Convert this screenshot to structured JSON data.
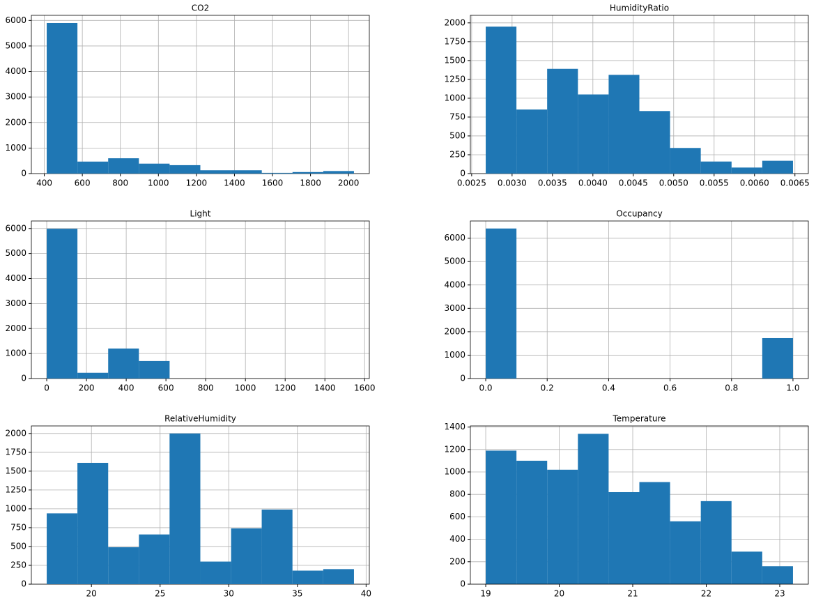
{
  "chart_data": [
    {
      "type": "histogram",
      "title": "CO2",
      "color": "#1f77b4",
      "grid": true,
      "bins": [
        412.75,
        574.3,
        735.9,
        897.5,
        1059.1,
        1220.6,
        1382.2,
        1543.8,
        1705.4,
        1867.0,
        2028.5
      ],
      "values": [
        5900,
        470,
        600,
        390,
        330,
        130,
        130,
        30,
        60,
        100
      ],
      "xlim": [
        332,
        2109.3
      ],
      "ylim": [
        0,
        6200
      ],
      "xticks": [
        400,
        600,
        800,
        1000,
        1200,
        1400,
        1600,
        1800,
        2000
      ],
      "yticks": [
        0,
        1000,
        2000,
        3000,
        4000,
        5000,
        6000
      ]
    },
    {
      "type": "histogram",
      "title": "HumidityRatio",
      "color": "#1f77b4",
      "grid": true,
      "bins": [
        0.002674,
        0.003054,
        0.003434,
        0.003815,
        0.004195,
        0.004575,
        0.004955,
        0.005335,
        0.005716,
        0.006096,
        0.006476
      ],
      "values": [
        1950,
        850,
        1390,
        1050,
        1310,
        830,
        340,
        160,
        80,
        170
      ],
      "xlim": [
        0.002484,
        0.006666
      ],
      "ylim": [
        0,
        2100
      ],
      "xticks": [
        0.0025,
        {
          "value": 0.003,
          "label": "0.0030"
        },
        0.0035,
        {
          "value": 0.004,
          "label": "0.0040"
        },
        0.0045,
        {
          "value": 0.005,
          "label": "0.0050"
        },
        0.0055,
        {
          "value": 0.006,
          "label": "0.0060"
        },
        0.0065
      ],
      "yticks": [
        0,
        250,
        500,
        750,
        1000,
        1250,
        1500,
        1750,
        2000
      ]
    },
    {
      "type": "histogram",
      "title": "Light",
      "color": "#1f77b4",
      "grid": true,
      "bins": [
        0,
        154.6,
        309.3,
        463.9,
        618.5,
        773.2,
        927.8,
        1082.4,
        1237.1,
        1391.7,
        1546.3
      ],
      "values": [
        5990,
        230,
        1200,
        700,
        0,
        0,
        0,
        0,
        0,
        0
      ],
      "xlim": [
        -77.3,
        1623.6
      ],
      "ylim": [
        0,
        6300
      ],
      "xticks": [
        0,
        200,
        400,
        600,
        800,
        1000,
        1200,
        1400,
        1600
      ],
      "yticks": [
        0,
        1000,
        2000,
        3000,
        4000,
        5000,
        6000
      ]
    },
    {
      "type": "histogram",
      "title": "Occupancy",
      "color": "#1f77b4",
      "grid": true,
      "bins": [
        0,
        0.1,
        0.2,
        0.3,
        0.4,
        0.5,
        0.6,
        0.7,
        0.8,
        0.9,
        1
      ],
      "values": [
        6414,
        0,
        0,
        0,
        0,
        0,
        0,
        0,
        0,
        1729
      ],
      "xlim": [
        -0.05,
        1.05
      ],
      "ylim": [
        0,
        6735
      ],
      "xticks": [
        {
          "value": 0,
          "label": "0.0"
        },
        0.2,
        0.4,
        0.6,
        0.8,
        {
          "value": 1,
          "label": "1.0"
        }
      ],
      "yticks": [
        0,
        1000,
        2000,
        3000,
        4000,
        5000,
        6000
      ]
    },
    {
      "type": "histogram",
      "title": "RelativeHumidity",
      "color": "#1f77b4",
      "grid": true,
      "bins": [
        16.745,
        18.98,
        21.22,
        23.46,
        25.69,
        27.93,
        30.17,
        32.4,
        34.64,
        36.88,
        39.1175
      ],
      "values": [
        940,
        1610,
        490,
        660,
        2000,
        300,
        740,
        990,
        180,
        200
      ],
      "xlim": [
        15.626,
        40.236
      ],
      "ylim": [
        0,
        2100
      ],
      "xticks": [
        20,
        25,
        30,
        35,
        40
      ],
      "yticks": [
        0,
        250,
        500,
        750,
        1000,
        1250,
        1500,
        1750,
        2000
      ]
    },
    {
      "type": "histogram",
      "title": "Temperature",
      "color": "#1f77b4",
      "grid": true,
      "bins": [
        19,
        19.418,
        19.836,
        20.254,
        20.672,
        21.09,
        21.508,
        21.926,
        22.344,
        22.762,
        23.18
      ],
      "values": [
        1190,
        1100,
        1020,
        1340,
        820,
        910,
        560,
        740,
        290,
        160
      ],
      "xlim": [
        18.791,
        23.389
      ],
      "ylim": [
        0,
        1410
      ],
      "xticks": [
        19,
        20,
        21,
        22,
        23
      ],
      "yticks": [
        0,
        200,
        400,
        600,
        800,
        1000,
        1200,
        1400
      ]
    }
  ]
}
